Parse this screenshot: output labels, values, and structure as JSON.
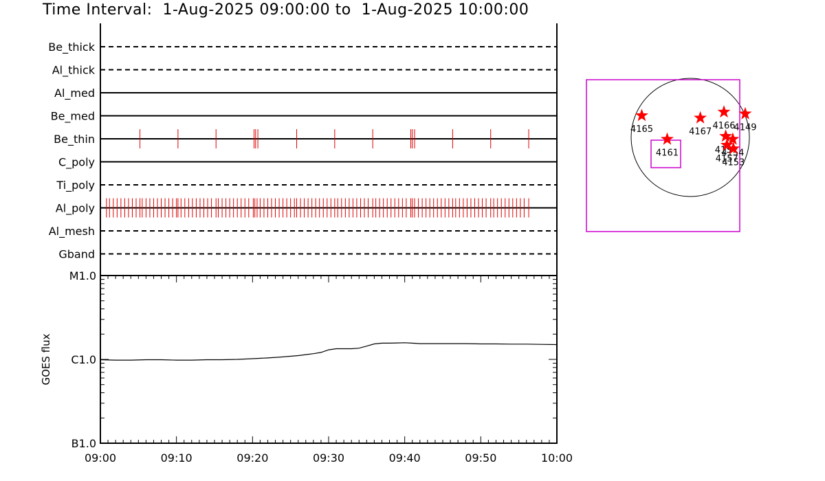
{
  "title": "Time Interval:  1-Aug-2025 09:00:00 to  1-Aug-2025 10:00:00",
  "colors": {
    "tick": "#dd0000",
    "star": "#ff0000",
    "box": "#cc00cc",
    "line": "#000000"
  },
  "chart_data": [
    {
      "type": "event-timeline",
      "x_unit": "minutes after 09:00",
      "xlim": [
        0,
        60
      ],
      "filters": [
        {
          "name": "Be_thick",
          "style": "dashed",
          "events": []
        },
        {
          "name": "Al_thick",
          "style": "dashed",
          "events": []
        },
        {
          "name": "Al_med",
          "style": "solid",
          "events": []
        },
        {
          "name": "Be_med",
          "style": "solid",
          "events": []
        },
        {
          "name": "Be_thin",
          "style": "solid",
          "events": [
            5.2,
            10.2,
            15.2,
            20.2,
            20.4,
            20.7,
            25.8,
            30.8,
            35.8,
            40.8,
            41.0,
            41.3,
            46.3,
            51.3,
            56.3
          ]
        },
        {
          "name": "C_poly",
          "style": "solid",
          "events": []
        },
        {
          "name": "Ti_poly",
          "style": "dashed",
          "events": []
        },
        {
          "name": "Al_poly",
          "style": "solid",
          "events": [
            0.8,
            1.2,
            1.7,
            2.2,
            2.7,
            3.2,
            3.7,
            4.2,
            4.7,
            5.2,
            5.5,
            6.0,
            6.5,
            7.0,
            7.5,
            8.0,
            8.5,
            9.0,
            9.5,
            10.0,
            10.2,
            10.6,
            11.1,
            11.6,
            12.1,
            12.6,
            13.1,
            13.6,
            14.1,
            14.6,
            15.2,
            15.5,
            16.0,
            16.5,
            17.0,
            17.5,
            18.0,
            18.5,
            19.0,
            19.5,
            20.1,
            20.3,
            20.6,
            21.0,
            21.5,
            22.0,
            22.5,
            23.0,
            23.5,
            24.0,
            24.5,
            25.0,
            25.5,
            25.8,
            26.3,
            26.8,
            27.3,
            27.8,
            28.3,
            28.8,
            29.3,
            29.8,
            30.3,
            30.8,
            31.2,
            31.7,
            32.2,
            32.7,
            33.2,
            33.7,
            34.2,
            34.7,
            35.2,
            35.8,
            36.2,
            36.7,
            37.2,
            37.7,
            38.2,
            38.7,
            39.2,
            39.7,
            40.2,
            40.8,
            41.0,
            41.3,
            41.8,
            42.3,
            42.8,
            43.3,
            43.8,
            44.3,
            44.8,
            45.3,
            45.8,
            46.3,
            46.7,
            47.2,
            47.7,
            48.2,
            48.7,
            49.2,
            49.7,
            50.2,
            50.7,
            51.3,
            51.7,
            52.2,
            52.7,
            53.2,
            53.7,
            54.2,
            54.7,
            55.2,
            55.7,
            56.3
          ]
        },
        {
          "name": "Al_mesh",
          "style": "dashed",
          "events": []
        },
        {
          "name": "Gband",
          "style": "dashed",
          "events": []
        }
      ]
    },
    {
      "type": "line",
      "ylabel": "GOES flux",
      "yscale": "log",
      "ylim": [
        1e-07,
        1e-05
      ],
      "ytick_labels": [
        "B1.0",
        "C1.0",
        "M1.0"
      ],
      "ytick_values": [
        1e-07,
        1e-06,
        1e-05
      ],
      "xlim": [
        0,
        60
      ],
      "xtick_labels": [
        "09:00",
        "09:10",
        "09:20",
        "09:30",
        "09:40",
        "09:50",
        "10:00"
      ],
      "xtick_values": [
        0,
        10,
        20,
        30,
        40,
        50,
        60
      ],
      "x": [
        0,
        2,
        4,
        6,
        8,
        10,
        12,
        14,
        16,
        18,
        20,
        22,
        24,
        26,
        27,
        28,
        29,
        30,
        31,
        32,
        33,
        34,
        35,
        36,
        37,
        38,
        39,
        40,
        41,
        42,
        44,
        46,
        48,
        50,
        52,
        54,
        56,
        58,
        60
      ],
      "y": [
        9.9e-07,
        9.8e-07,
        9.8e-07,
        9.9e-07,
        9.9e-07,
        9.8e-07,
        9.8e-07,
        9.9e-07,
        9.9e-07,
        1e-06,
        1.02e-06,
        1.04e-06,
        1.07e-06,
        1.11e-06,
        1.14e-06,
        1.17e-06,
        1.21e-06,
        1.3e-06,
        1.34e-06,
        1.34e-06,
        1.34e-06,
        1.36e-06,
        1.44e-06,
        1.53e-06,
        1.56e-06,
        1.56e-06,
        1.57e-06,
        1.58e-06,
        1.56e-06,
        1.54e-06,
        1.54e-06,
        1.54e-06,
        1.54e-06,
        1.53e-06,
        1.53e-06,
        1.52e-06,
        1.52e-06,
        1.51e-06,
        1.5e-06
      ]
    },
    {
      "type": "scatter",
      "subtype": "solar-disk-map",
      "points": [
        {
          "label": "4165",
          "xnorm": -0.82,
          "ynorm": 0.37
        },
        {
          "label": "4167",
          "xnorm": 0.17,
          "ynorm": 0.33
        },
        {
          "label": "4166",
          "xnorm": 0.57,
          "ynorm": 0.43
        },
        {
          "label": "4149",
          "xnorm": 0.93,
          "ynorm": 0.4
        },
        {
          "label": "4161",
          "xnorm": -0.39,
          "ynorm": -0.03
        },
        {
          "label": "415?",
          "xnorm": 0.6,
          "ynorm": 0.02
        },
        {
          "label": "4154",
          "xnorm": 0.72,
          "ynorm": -0.03
        },
        {
          "label": "4157",
          "xnorm": 0.62,
          "ynorm": -0.13
        },
        {
          "label": "4153",
          "xnorm": 0.73,
          "ynorm": -0.19
        }
      ],
      "point_labels_note_text": ""
    }
  ]
}
